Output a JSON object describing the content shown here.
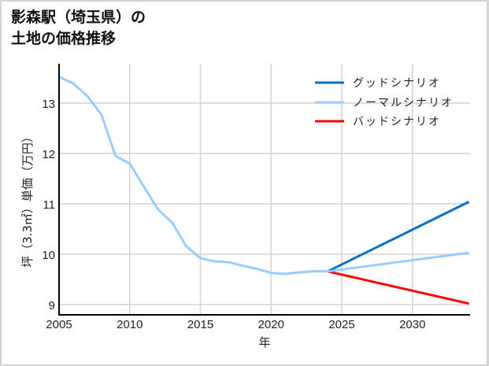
{
  "title": {
    "line1": "影森駅（埼玉県）の",
    "line2": "土地の価格推移"
  },
  "axes": {
    "xlabel": "年",
    "ylabel": "坪（3.3㎡）単価（万円）"
  },
  "legend": {
    "good": "グッドシナリオ",
    "normal": "ノーマルシナリオ",
    "bad": "バッドシナリオ"
  },
  "colors": {
    "good": "#0a72c4",
    "normal": "#99ccff",
    "bad": "#ff0000",
    "grid": "#d3d3d3",
    "axis": "#000000"
  },
  "chart_data": {
    "type": "line",
    "title": "影森駅（埼玉県）の土地の価格推移",
    "xlabel": "年",
    "ylabel": "坪（3.3㎡）単価（万円）",
    "xlim": [
      2005,
      2034
    ],
    "ylim": [
      8.8,
      13.8
    ],
    "xticks": [
      2005,
      2010,
      2015,
      2020,
      2025,
      2030
    ],
    "yticks": [
      9,
      10,
      11,
      12,
      13
    ],
    "grid": true,
    "legend_position": "upper right",
    "series": [
      {
        "name": "ノーマルシナリオ",
        "color": "#99ccff",
        "x": [
          2005,
          2006,
          2007,
          2008,
          2009,
          2010,
          2011,
          2012,
          2013,
          2014,
          2015,
          2016,
          2017,
          2018,
          2019,
          2020,
          2021,
          2022,
          2023,
          2024,
          2034
        ],
        "y": [
          13.52,
          13.39,
          13.14,
          12.77,
          11.95,
          11.8,
          11.34,
          10.89,
          10.63,
          10.16,
          9.92,
          9.86,
          9.84,
          9.77,
          9.71,
          9.63,
          9.61,
          9.64,
          9.66,
          9.66,
          10.03
        ]
      },
      {
        "name": "グッドシナリオ",
        "color": "#0a72c4",
        "x": [
          2024,
          2034
        ],
        "y": [
          9.66,
          11.04
        ]
      },
      {
        "name": "バッドシナリオ",
        "color": "#ff0000",
        "x": [
          2024,
          2034
        ],
        "y": [
          9.66,
          9.02
        ]
      }
    ]
  }
}
